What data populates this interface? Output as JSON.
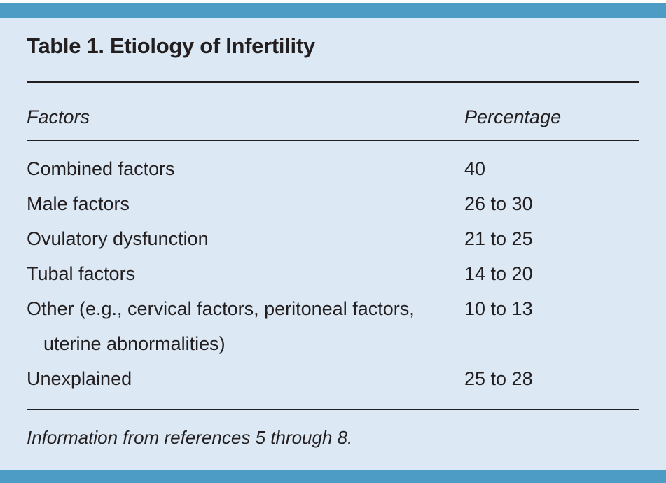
{
  "colors": {
    "accent_bar": "#4D9CC6",
    "panel_background": "#DCE8F3",
    "text": "#231F20"
  },
  "table": {
    "title": "Table 1. Etiology of Infertility",
    "columns": {
      "factors": "Factors",
      "percentage": "Percentage"
    },
    "rows": [
      {
        "factor": "Combined factors",
        "percentage": "40"
      },
      {
        "factor": "Male factors",
        "percentage": "26 to 30"
      },
      {
        "factor": "Ovulatory dysfunction",
        "percentage": "21 to 25"
      },
      {
        "factor": "Tubal factors",
        "percentage": "14 to 20"
      },
      {
        "factor": "Other (e.g., cervical factors, peritoneal factors, uterine abnormalities)",
        "percentage": "10 to 13"
      },
      {
        "factor": "Unexplained",
        "percentage": "25 to 28"
      }
    ],
    "footnote": "Information from references 5 through 8."
  }
}
